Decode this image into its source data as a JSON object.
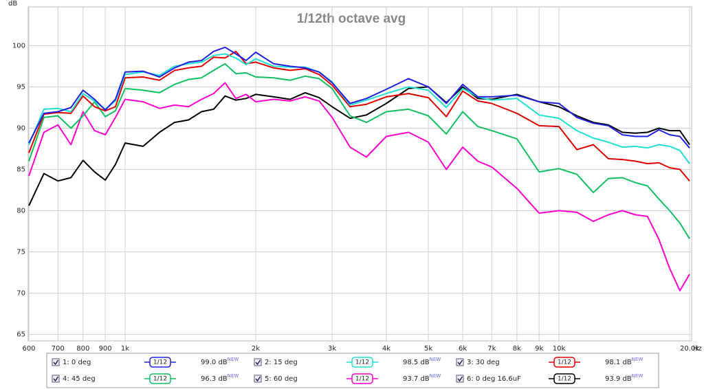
{
  "chart_data": {
    "type": "line",
    "title": "1/12th octave avg",
    "y_label": "dB",
    "x_unit": "Hz",
    "log_x": true,
    "grid": true,
    "smoothing": "1/12",
    "x": [
      600,
      650,
      700,
      750,
      800,
      850,
      900,
      950,
      1000,
      1100,
      1200,
      1300,
      1400,
      1500,
      1600,
      1700,
      1800,
      1900,
      2000,
      2200,
      2400,
      2600,
      2800,
      3000,
      3300,
      3600,
      4000,
      4500,
      5000,
      5500,
      6000,
      6500,
      7000,
      8000,
      9000,
      10000,
      11000,
      12000,
      13000,
      14000,
      15000,
      16000,
      17000,
      18000,
      19000,
      20000
    ],
    "xlim": [
      600,
      20000
    ],
    "xticks": [
      600,
      700,
      800,
      900,
      {
        "value": 1000,
        "label": "1k"
      },
      {
        "value": 2000,
        "label": "2k"
      },
      {
        "value": 3000,
        "label": "3k"
      },
      {
        "value": 4000,
        "label": "4k"
      },
      {
        "value": 5000,
        "label": "5k"
      },
      {
        "value": 6000,
        "label": "6k"
      },
      {
        "value": 7000,
        "label": "7k"
      },
      {
        "value": 8000,
        "label": "8k"
      },
      {
        "value": 9000,
        "label": "9k"
      },
      {
        "value": 10000,
        "label": "10k"
      },
      {
        "value": 20000,
        "label": "20.0k"
      }
    ],
    "ylim": [
      64.3,
      104.7
    ],
    "yticks": [
      65,
      70,
      75,
      80,
      85,
      90,
      95,
      100
    ],
    "series": [
      {
        "name": "1: 0 deg",
        "color": "#2020e0",
        "level": "99.0 dB",
        "badge": "NEW",
        "values": [
          88.2,
          91.8,
          92.0,
          92.5,
          94.6,
          93.5,
          92.2,
          93.5,
          96.8,
          96.9,
          96.2,
          97.3,
          98.0,
          98.2,
          99.3,
          99.8,
          99.0,
          98.2,
          99.2,
          97.8,
          97.5,
          97.3,
          96.8,
          95.5,
          93.0,
          93.6,
          94.7,
          96.0,
          95.0,
          93.0,
          95.3,
          93.8,
          93.8,
          94.0,
          93.2,
          93.0,
          91.3,
          90.6,
          90.3,
          89.2,
          89.0,
          89.0,
          89.8,
          89.2,
          89.0,
          87.6
        ]
      },
      {
        "name": "2: 15 deg",
        "color": "#20e0d0",
        "level": "98.5 dB",
        "badge": "NEW",
        "values": [
          88.0,
          92.3,
          92.4,
          92.0,
          94.2,
          93.3,
          92.3,
          93.3,
          96.5,
          96.8,
          96.4,
          97.5,
          97.8,
          98.0,
          98.8,
          99.0,
          98.5,
          97.7,
          98.4,
          97.5,
          97.4,
          97.4,
          96.8,
          95.6,
          92.8,
          93.4,
          94.2,
          95.0,
          94.6,
          92.5,
          94.8,
          93.8,
          93.4,
          93.6,
          91.6,
          91.2,
          89.7,
          88.8,
          88.3,
          87.7,
          87.8,
          87.6,
          88.0,
          87.8,
          87.3,
          85.7
        ]
      },
      {
        "name": "3: 30 deg",
        "color": "#e00000",
        "level": "98.1 dB",
        "badge": "NEW",
        "values": [
          87.0,
          91.7,
          91.9,
          91.8,
          93.9,
          92.6,
          92.1,
          92.6,
          96.1,
          96.2,
          95.8,
          97.0,
          97.3,
          97.5,
          98.6,
          98.5,
          99.3,
          97.8,
          98.0,
          97.3,
          97.0,
          97.2,
          96.5,
          95.2,
          92.6,
          92.9,
          93.8,
          94.2,
          93.7,
          91.4,
          94.5,
          93.3,
          93.0,
          91.8,
          90.3,
          90.2,
          87.4,
          88.0,
          86.3,
          86.2,
          86.0,
          85.7,
          85.8,
          85.2,
          85.0,
          83.6
        ]
      },
      {
        "name": "4: 45 deg",
        "color": "#10c060",
        "level": "96.3 dB",
        "badge": "NEW",
        "values": [
          86.0,
          91.3,
          91.5,
          90.0,
          91.5,
          93.2,
          91.4,
          92.1,
          94.8,
          94.6,
          94.3,
          95.3,
          95.9,
          96.1,
          97.0,
          97.8,
          96.6,
          96.7,
          96.2,
          96.1,
          95.8,
          96.3,
          96.0,
          94.8,
          91.5,
          90.7,
          92.0,
          92.3,
          91.5,
          89.3,
          92.0,
          90.2,
          89.7,
          88.7,
          84.7,
          85.1,
          84.4,
          82.2,
          83.9,
          84.0,
          83.4,
          83.0,
          81.4,
          80.0,
          78.5,
          76.6
        ]
      },
      {
        "name": "5: 60 deg",
        "color": "#ff00d0",
        "level": "93.7 dB",
        "badge": "NEW",
        "values": [
          84.2,
          89.5,
          90.4,
          88.0,
          92.0,
          89.7,
          89.2,
          91.3,
          93.5,
          93.2,
          92.4,
          92.8,
          92.6,
          93.5,
          94.2,
          95.5,
          93.6,
          94.1,
          93.2,
          93.5,
          93.3,
          93.8,
          93.3,
          91.3,
          87.7,
          86.5,
          89.0,
          89.5,
          88.3,
          85.0,
          87.7,
          86.0,
          85.3,
          82.7,
          79.7,
          80.0,
          79.8,
          78.7,
          79.5,
          80.0,
          79.5,
          79.3,
          76.5,
          73.0,
          70.3,
          72.3
        ]
      },
      {
        "name": "6: 0 deg 16.6uF",
        "color": "#000000",
        "level": "93.9 dB",
        "badge": "NEW",
        "values": [
          80.6,
          84.5,
          83.6,
          84.0,
          86.1,
          84.7,
          83.7,
          85.6,
          88.2,
          87.8,
          89.5,
          90.7,
          91.0,
          92.0,
          92.3,
          93.9,
          93.4,
          93.6,
          94.1,
          93.8,
          93.5,
          94.3,
          93.7,
          92.6,
          91.2,
          91.6,
          93.0,
          94.8,
          95.0,
          93.1,
          95.0,
          93.6,
          93.5,
          94.1,
          93.2,
          92.6,
          91.5,
          90.7,
          90.4,
          89.5,
          89.4,
          89.5,
          90.0,
          89.7,
          89.7,
          88.0
        ]
      }
    ]
  }
}
